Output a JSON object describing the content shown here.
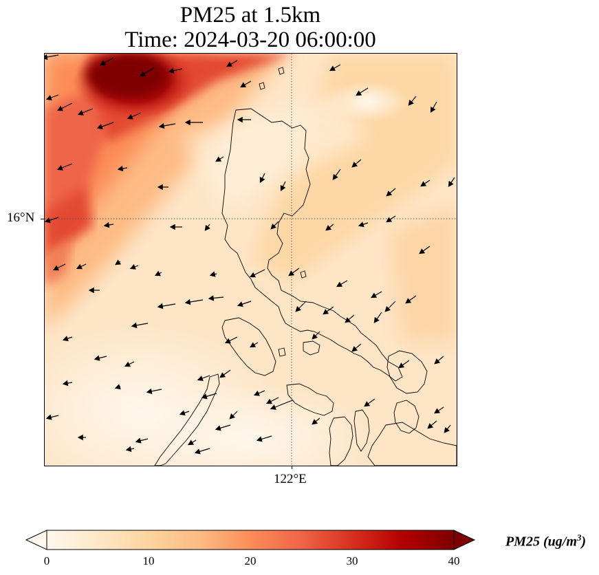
{
  "title": {
    "line1": "PM25 at 1.5km",
    "line2": "Time: 2024-03-20 06:00:00"
  },
  "axes": {
    "lat_label": "16°N",
    "lon_label": "122°E"
  },
  "colorbar": {
    "ticks": [
      "0",
      "10",
      "20",
      "30",
      "40"
    ],
    "label_main": "PM25 (ug/m",
    "label_sup": "3",
    "label_end": ")",
    "min": 0,
    "max": 40,
    "extend": "both",
    "colormap": [
      "#fff7ec",
      "#fee8c8",
      "#fdd49e",
      "#fdbb84",
      "#fc8d59",
      "#ef6548",
      "#d7301f",
      "#b30000",
      "#7f0000"
    ]
  },
  "map": {
    "coastline_color": "#000000",
    "gridline_style": "dotted",
    "vector_color": "#000000"
  }
}
